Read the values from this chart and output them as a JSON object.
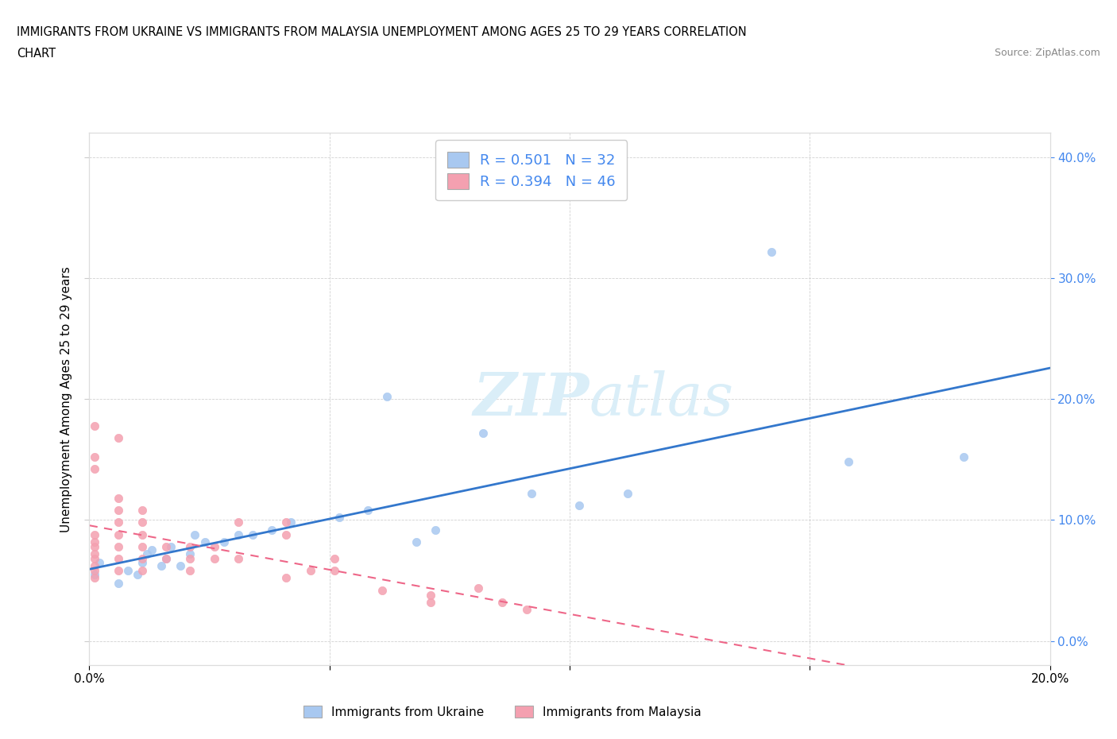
{
  "title_line1": "IMMIGRANTS FROM UKRAINE VS IMMIGRANTS FROM MALAYSIA UNEMPLOYMENT AMONG AGES 25 TO 29 YEARS CORRELATION",
  "title_line2": "CHART",
  "source_text": "Source: ZipAtlas.com",
  "ylabel": "Unemployment Among Ages 25 to 29 years",
  "xlim": [
    0.0,
    0.2
  ],
  "ylim": [
    -0.02,
    0.42
  ],
  "yticks": [
    0.0,
    0.1,
    0.2,
    0.3,
    0.4
  ],
  "xticks": [
    0.0,
    0.05,
    0.1,
    0.15,
    0.2
  ],
  "r_ukraine": 0.501,
  "n_ukraine": 32,
  "r_malaysia": 0.394,
  "n_malaysia": 46,
  "color_ukraine": "#a8c8f0",
  "color_malaysia": "#f4a0b0",
  "line_color_ukraine": "#3377cc",
  "line_color_malaysia": "#ee6688",
  "legend_label_color": "#4488ee",
  "watermark_color": "#daeef8",
  "legend_ukraine": "Immigrants from Ukraine",
  "legend_malaysia": "Immigrants from Malaysia",
  "ukraine_x": [
    0.001,
    0.002,
    0.006,
    0.008,
    0.01,
    0.011,
    0.012,
    0.013,
    0.015,
    0.016,
    0.017,
    0.019,
    0.021,
    0.022,
    0.024,
    0.028,
    0.031,
    0.034,
    0.038,
    0.042,
    0.052,
    0.058,
    0.062,
    0.068,
    0.072,
    0.082,
    0.092,
    0.102,
    0.112,
    0.142,
    0.158,
    0.182
  ],
  "ukraine_y": [
    0.055,
    0.065,
    0.048,
    0.058,
    0.055,
    0.065,
    0.072,
    0.075,
    0.062,
    0.068,
    0.078,
    0.062,
    0.072,
    0.088,
    0.082,
    0.082,
    0.088,
    0.088,
    0.092,
    0.098,
    0.102,
    0.108,
    0.202,
    0.082,
    0.092,
    0.172,
    0.122,
    0.112,
    0.122,
    0.322,
    0.148,
    0.152
  ],
  "malaysia_x": [
    0.001,
    0.001,
    0.001,
    0.001,
    0.001,
    0.001,
    0.001,
    0.001,
    0.001,
    0.001,
    0.001,
    0.006,
    0.006,
    0.006,
    0.006,
    0.006,
    0.006,
    0.006,
    0.006,
    0.011,
    0.011,
    0.011,
    0.011,
    0.011,
    0.011,
    0.016,
    0.016,
    0.021,
    0.021,
    0.021,
    0.026,
    0.026,
    0.031,
    0.031,
    0.041,
    0.041,
    0.041,
    0.046,
    0.051,
    0.051,
    0.061,
    0.071,
    0.071,
    0.081,
    0.086,
    0.091
  ],
  "malaysia_y": [
    0.052,
    0.058,
    0.062,
    0.068,
    0.072,
    0.078,
    0.082,
    0.088,
    0.142,
    0.152,
    0.178,
    0.058,
    0.068,
    0.078,
    0.088,
    0.098,
    0.108,
    0.118,
    0.168,
    0.058,
    0.068,
    0.078,
    0.088,
    0.098,
    0.108,
    0.068,
    0.078,
    0.058,
    0.068,
    0.078,
    0.068,
    0.078,
    0.068,
    0.098,
    0.088,
    0.098,
    0.052,
    0.058,
    0.058,
    0.068,
    0.042,
    0.032,
    0.038,
    0.044,
    0.032,
    0.026
  ]
}
